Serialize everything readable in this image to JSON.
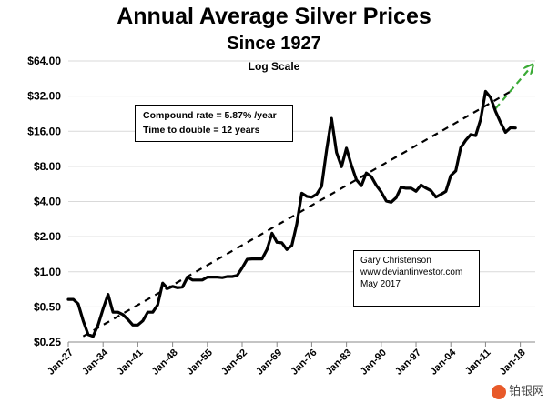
{
  "title": "Annual Average Silver Prices",
  "subtitle": "Since 1927",
  "scale_note": "Log Scale",
  "annotations": {
    "compound_rate": "Compound rate = 5.87% /year",
    "time_to_double": "Time to double = 12 years",
    "author": "Gary Christenson",
    "website": "www.deviantinvestor.com",
    "date": "May 2017"
  },
  "watermark": "铂银网",
  "colors": {
    "line": "#000000",
    "trend": "#000000",
    "projection": "#3aaa35",
    "grid": "#d9d9d9"
  },
  "chart_data": {
    "type": "line",
    "yscale": "log2",
    "ylim": [
      0.25,
      64
    ],
    "xlim": [
      1927,
      2021
    ],
    "grid": "horizontal",
    "y_ticks": [
      {
        "value": 0.25,
        "label": "$0.25"
      },
      {
        "value": 0.5,
        "label": "$0.50"
      },
      {
        "value": 1,
        "label": "$1.00"
      },
      {
        "value": 2,
        "label": "$2.00"
      },
      {
        "value": 4,
        "label": "$4.00"
      },
      {
        "value": 8,
        "label": "$8.00"
      },
      {
        "value": 16,
        "label": "$16.00"
      },
      {
        "value": 32,
        "label": "$32.00"
      },
      {
        "value": 64,
        "label": "$64.00"
      }
    ],
    "x_ticks": [
      {
        "value": 1927,
        "label": "Jan-27"
      },
      {
        "value": 1934,
        "label": "Jan-34"
      },
      {
        "value": 1941,
        "label": "Jan-41"
      },
      {
        "value": 1948,
        "label": "Jan-48"
      },
      {
        "value": 1955,
        "label": "Jan-55"
      },
      {
        "value": 1962,
        "label": "Jan-62"
      },
      {
        "value": 1969,
        "label": "Jan-69"
      },
      {
        "value": 1976,
        "label": "Jan-76"
      },
      {
        "value": 1983,
        "label": "Jan-83"
      },
      {
        "value": 1990,
        "label": "Jan-90"
      },
      {
        "value": 1997,
        "label": "Jan-97"
      },
      {
        "value": 2004,
        "label": "Jan-04"
      },
      {
        "value": 2011,
        "label": "Jan-11"
      },
      {
        "value": 2018,
        "label": "Jan-18"
      }
    ],
    "series": [
      {
        "x": [
          1927,
          1928,
          1929,
          1930,
          1931,
          1932,
          1933,
          1934,
          1935,
          1936,
          1937,
          1938,
          1939,
          1940,
          1941,
          1942,
          1943,
          1944,
          1945,
          1946,
          1947,
          1948,
          1949,
          1950,
          1951,
          1952,
          1953,
          1954,
          1955,
          1956,
          1957,
          1958,
          1959,
          1960,
          1961,
          1962,
          1963,
          1964,
          1965,
          1966,
          1967,
          1968,
          1969,
          1970,
          1971,
          1972,
          1973,
          1974,
          1975,
          1976,
          1977,
          1978,
          1979,
          1980,
          1981,
          1982,
          1983,
          1984,
          1985,
          1986,
          1987,
          1988,
          1989,
          1990,
          1991,
          1992,
          1993,
          1994,
          1995,
          1996,
          1997,
          1998,
          1999,
          2000,
          2001,
          2002,
          2003,
          2004,
          2005,
          2006,
          2007,
          2008,
          2009,
          2010,
          2011,
          2012,
          2013,
          2014,
          2015,
          2016,
          2017
        ],
        "y": [
          0.58,
          0.58,
          0.53,
          0.38,
          0.29,
          0.28,
          0.35,
          0.48,
          0.64,
          0.45,
          0.45,
          0.43,
          0.39,
          0.35,
          0.35,
          0.38,
          0.45,
          0.45,
          0.52,
          0.8,
          0.72,
          0.75,
          0.73,
          0.74,
          0.9,
          0.85,
          0.85,
          0.85,
          0.9,
          0.9,
          0.9,
          0.89,
          0.91,
          0.91,
          0.93,
          1.08,
          1.28,
          1.29,
          1.29,
          1.29,
          1.55,
          2.14,
          1.79,
          1.77,
          1.55,
          1.68,
          2.56,
          4.71,
          4.42,
          4.35,
          4.62,
          5.4,
          11.09,
          20.63,
          10.52,
          7.95,
          11.44,
          8.14,
          6.14,
          5.47,
          7.01,
          6.53,
          5.5,
          4.82,
          4.04,
          3.94,
          4.31,
          5.29,
          5.2,
          5.2,
          4.9,
          5.54,
          5.22,
          4.95,
          4.37,
          4.6,
          4.88,
          6.67,
          7.32,
          11.55,
          13.38,
          14.99,
          14.67,
          20.19,
          35.12,
          31.15,
          23.79,
          19.08,
          15.68,
          17.14,
          17.05
        ]
      }
    ],
    "trendline": {
      "x": [
        1930,
        2016
      ],
      "y": [
        0.28,
        35
      ]
    },
    "projection": {
      "x": [
        2013,
        2020
      ],
      "y": [
        25,
        56
      ]
    }
  }
}
